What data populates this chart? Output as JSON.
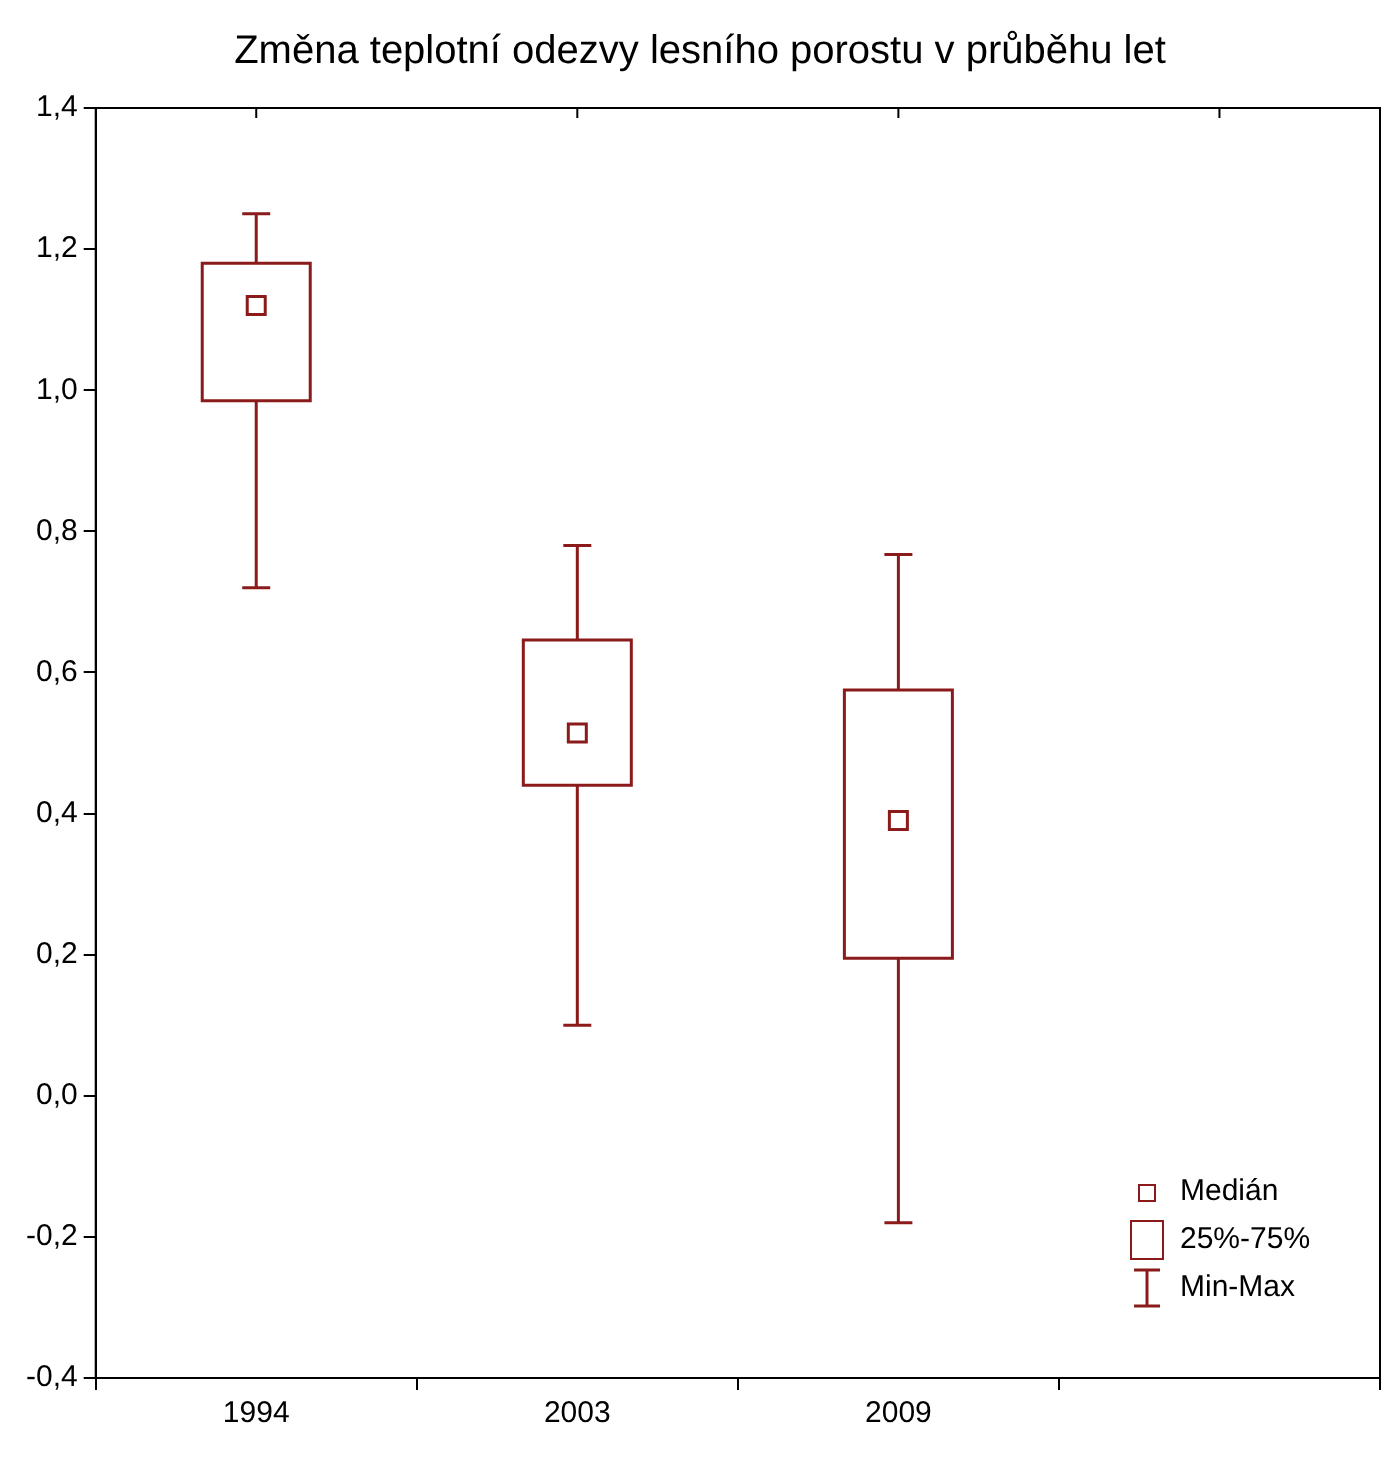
{
  "chart_data": {
    "type": "box",
    "title": "Změna teplotní odezvy lesního porostu v průběhu let",
    "categories": [
      "1994",
      "2003",
      "2009",
      null
    ],
    "boxes": [
      {
        "low": 0.72,
        "q1": 0.985,
        "median": 1.12,
        "q3": 1.18,
        "high": 1.25
      },
      {
        "low": 0.1,
        "q1": 0.44,
        "median": 0.514,
        "q3": 0.646,
        "high": 0.78
      },
      {
        "low": -0.18,
        "q1": 0.195,
        "median": 0.39,
        "q3": 0.575,
        "high": 0.767
      },
      null
    ],
    "color": "#8b1a1a",
    "ylim": [
      -0.4,
      1.4
    ],
    "yticks": [
      {
        "value": -0.4,
        "label": "-0,4"
      },
      {
        "value": -0.2,
        "label": "-0,2"
      },
      {
        "value": 0,
        "label": "0,0"
      },
      {
        "value": 0.2,
        "label": "0,2"
      },
      {
        "value": 0.4,
        "label": "0,4"
      },
      {
        "value": 0.6,
        "label": "0,6"
      },
      {
        "value": 0.8,
        "label": "0,8"
      },
      {
        "value": 1,
        "label": "1,0"
      },
      {
        "value": 1.2,
        "label": "1,2"
      },
      {
        "value": 1.4,
        "label": "1,4"
      }
    ],
    "grid": false,
    "annotations": [
      "Medián",
      "25%-75%",
      "Min-Max"
    ]
  }
}
